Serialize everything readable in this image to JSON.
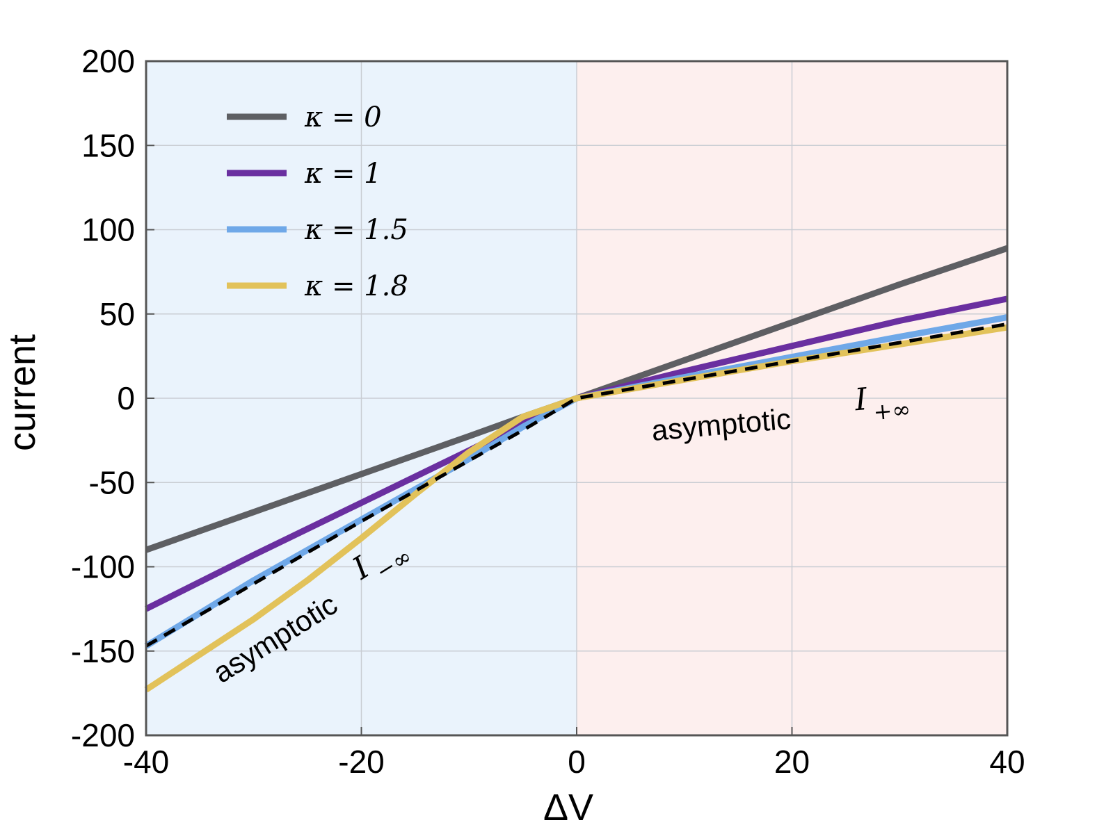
{
  "chart_data": {
    "type": "line",
    "xlabel": "ΔV",
    "ylabel": "current",
    "xlim": [
      -40,
      40
    ],
    "ylim": [
      -200,
      200
    ],
    "xticks": [
      -40,
      -20,
      0,
      20,
      40
    ],
    "yticks": [
      -200,
      -150,
      -100,
      -50,
      0,
      50,
      100,
      150,
      200
    ],
    "grid": true,
    "legend_position": "top-left",
    "background_regions": [
      {
        "x_range": [
          -40,
          0
        ],
        "color": "#eaf3fc"
      },
      {
        "x_range": [
          0,
          40
        ],
        "color": "#fdefee"
      }
    ],
    "series": [
      {
        "name": "κ = 0",
        "color": "#5e5f63",
        "x": [
          -40,
          -30,
          -20,
          -10,
          -5,
          0,
          10,
          20,
          30,
          40
        ],
        "y": [
          -90,
          -67.5,
          -45,
          -22.5,
          -11,
          0,
          22.5,
          45,
          67.5,
          89
        ]
      },
      {
        "name": "κ = 1",
        "color": "#6a2fa0",
        "x": [
          -40,
          -30,
          -20,
          -10,
          -5,
          0,
          10,
          20,
          30,
          40
        ],
        "y": [
          -125,
          -93,
          -62,
          -31,
          -15,
          0,
          16,
          31,
          46,
          59
        ]
      },
      {
        "name": "κ = 1.5",
        "color": "#6fa8e8",
        "x": [
          -40,
          -30,
          -20,
          -10,
          -5,
          0,
          10,
          20,
          30,
          40
        ],
        "y": [
          -147,
          -108,
          -72,
          -36,
          -17,
          0,
          12.5,
          24.5,
          36.5,
          48
        ]
      },
      {
        "name": "κ = 1.8",
        "color": "#e2c25a",
        "x": [
          -40,
          -35,
          -30,
          -25,
          -20,
          -15,
          -10,
          -5,
          0,
          10,
          20,
          30,
          40
        ],
        "y": [
          -173,
          -152,
          -131,
          -108,
          -83,
          -57,
          -32,
          -11,
          0,
          11,
          22,
          32,
          42
        ]
      },
      {
        "name": "",
        "color": "#000000",
        "dashed": true,
        "x": [
          -40,
          -30,
          -20,
          -10,
          -5,
          0,
          10,
          20,
          30,
          40
        ],
        "y": [
          -147,
          -110,
          -73,
          -37,
          -19,
          0,
          11,
          22,
          33,
          44
        ]
      }
    ],
    "annotations": [
      {
        "text": "asymptotic",
        "math": "I",
        "sub": "+∞"
      },
      {
        "text": "asymptotic",
        "math": "I",
        "sub": "−∞"
      }
    ]
  }
}
